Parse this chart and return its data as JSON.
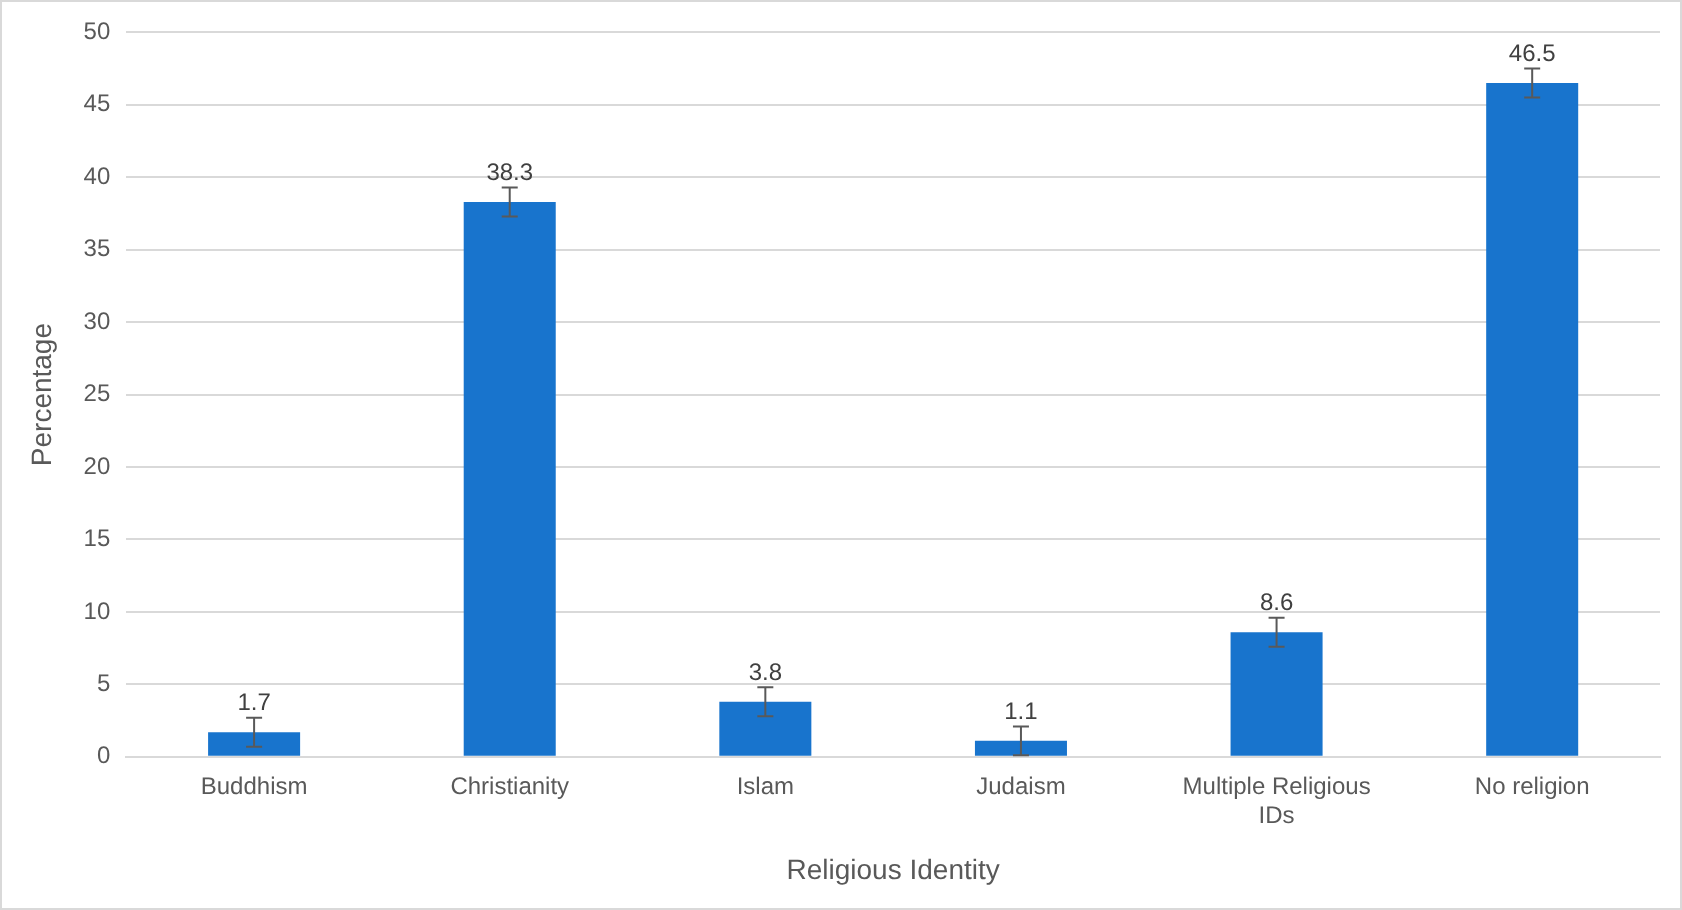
{
  "chart_data": {
    "type": "bar",
    "xlabel": "Religious Identity",
    "ylabel": "Percentage",
    "categories": [
      "Buddhism",
      "Christianity",
      "Islam",
      "Judaism",
      "Multiple Religious IDs",
      "No religion"
    ],
    "values": [
      1.7,
      38.3,
      3.8,
      1.1,
      8.6,
      46.5
    ],
    "errors": [
      1,
      1,
      1,
      1,
      1,
      1
    ],
    "color": "#1874cd",
    "ylim": [
      0,
      50
    ],
    "yticks": [
      0,
      5,
      10,
      15,
      20,
      25,
      30,
      35,
      40,
      45,
      50
    ],
    "grid": "y",
    "legend": false,
    "data_labels": true
  }
}
